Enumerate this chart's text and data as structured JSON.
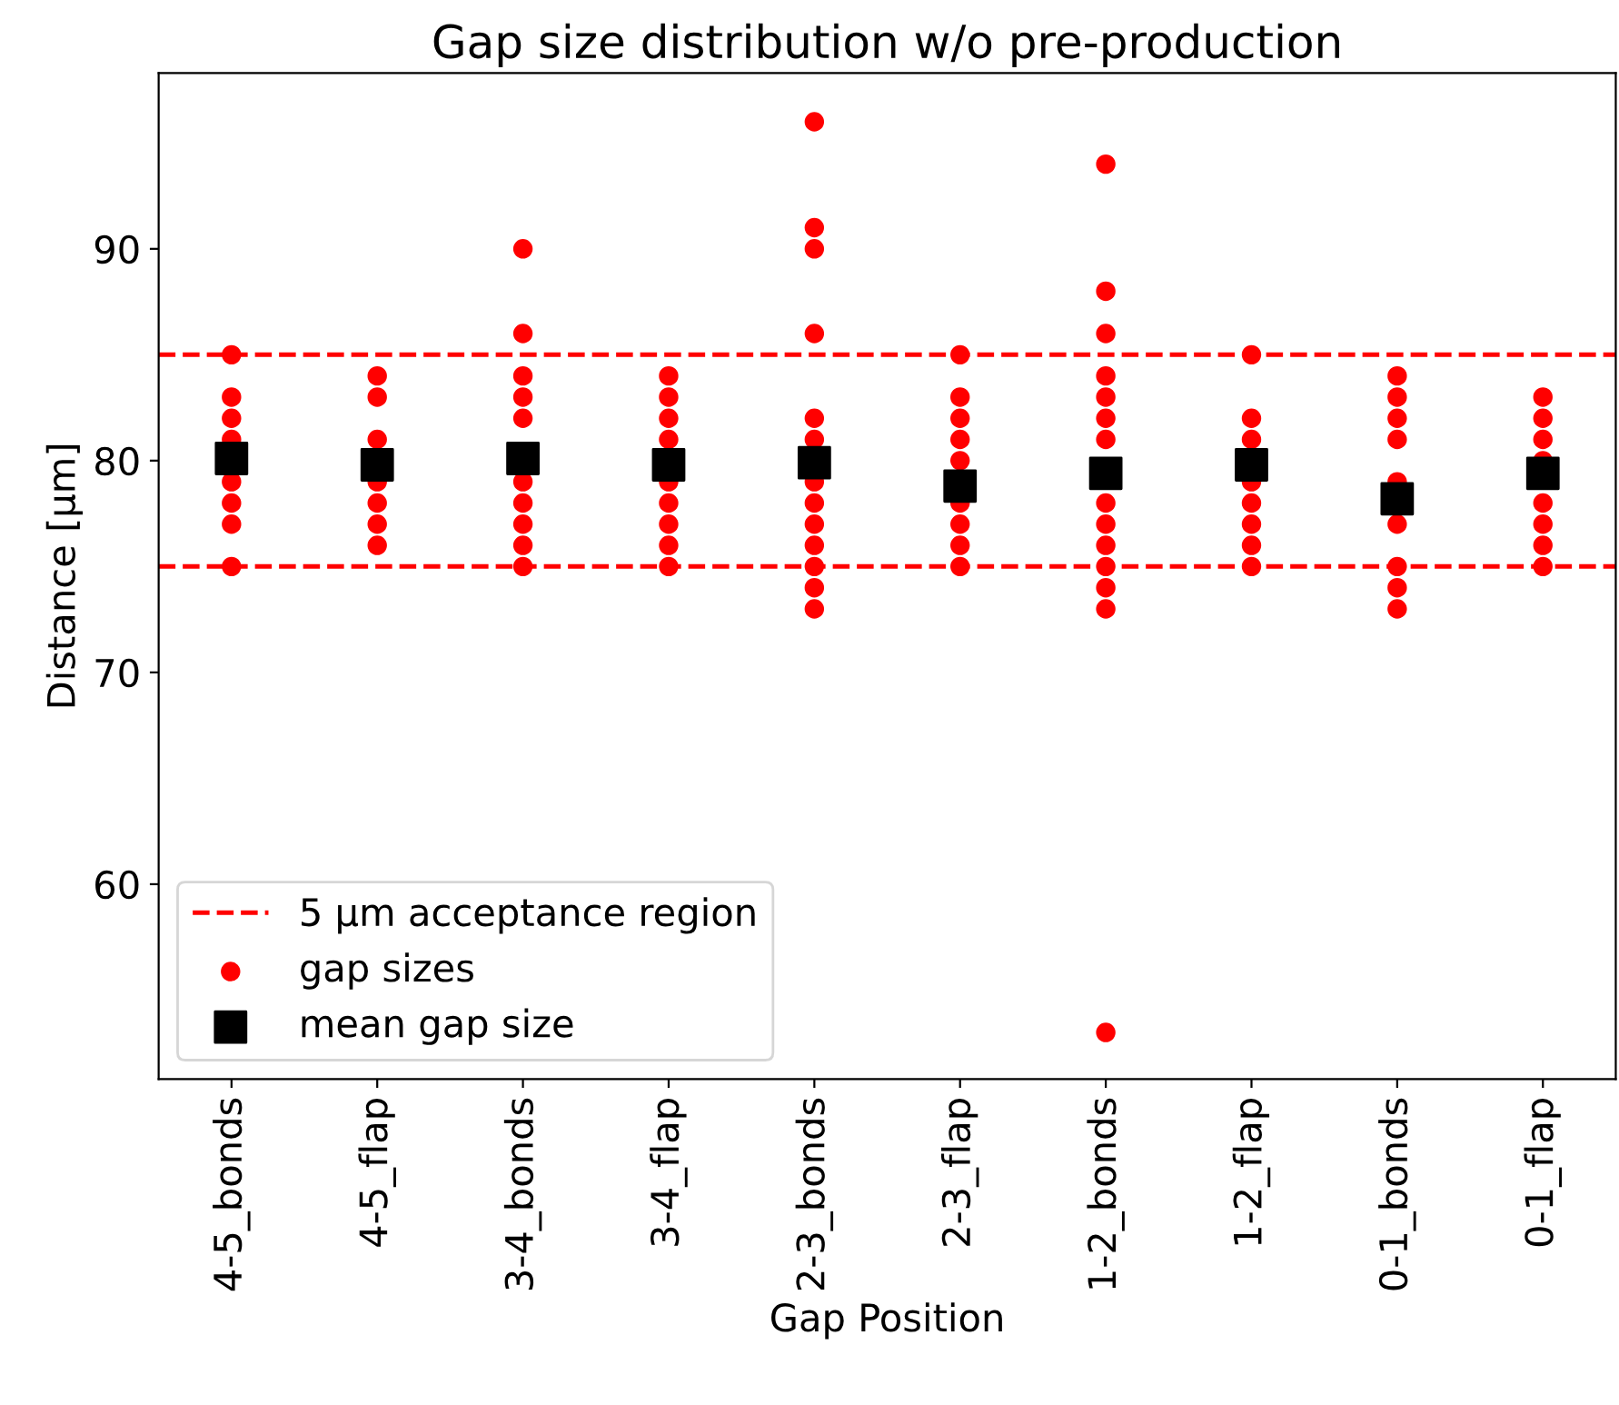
{
  "chart_data": {
    "type": "scatter",
    "title": "Gap size distribution w/o pre-production",
    "xlabel": "Gap Position",
    "ylabel": "Distance [µm]",
    "categories": [
      "4-5_bonds",
      "4-5_flap",
      "3-4_bonds",
      "3-4_flap",
      "2-3_bonds",
      "2-3_flap",
      "1-2_bonds",
      "1-2_flap",
      "0-1_bonds",
      "0-1_flap"
    ],
    "series": [
      {
        "name": "gap sizes",
        "marker": "circle",
        "color": "#ff0000",
        "x": [
          "4-5_bonds",
          "4-5_bonds",
          "4-5_bonds",
          "4-5_bonds",
          "4-5_bonds",
          "4-5_bonds",
          "4-5_bonds",
          "4-5_bonds",
          "4-5_flap",
          "4-5_flap",
          "4-5_flap",
          "4-5_flap",
          "4-5_flap",
          "4-5_flap",
          "4-5_flap",
          "3-4_bonds",
          "3-4_bonds",
          "3-4_bonds",
          "3-4_bonds",
          "3-4_bonds",
          "3-4_bonds",
          "3-4_bonds",
          "3-4_bonds",
          "3-4_bonds",
          "3-4_bonds",
          "3-4_flap",
          "3-4_flap",
          "3-4_flap",
          "3-4_flap",
          "3-4_flap",
          "3-4_flap",
          "3-4_flap",
          "3-4_flap",
          "3-4_flap",
          "2-3_bonds",
          "2-3_bonds",
          "2-3_bonds",
          "2-3_bonds",
          "2-3_bonds",
          "2-3_bonds",
          "2-3_bonds",
          "2-3_bonds",
          "2-3_bonds",
          "2-3_bonds",
          "2-3_bonds",
          "2-3_bonds",
          "2-3_bonds",
          "2-3_flap",
          "2-3_flap",
          "2-3_flap",
          "2-3_flap",
          "2-3_flap",
          "2-3_flap",
          "2-3_flap",
          "2-3_flap",
          "2-3_flap",
          "1-2_bonds",
          "1-2_bonds",
          "1-2_bonds",
          "1-2_bonds",
          "1-2_bonds",
          "1-2_bonds",
          "1-2_bonds",
          "1-2_bonds",
          "1-2_bonds",
          "1-2_bonds",
          "1-2_bonds",
          "1-2_bonds",
          "1-2_bonds",
          "1-2_bonds",
          "1-2_flap",
          "1-2_flap",
          "1-2_flap",
          "1-2_flap",
          "1-2_flap",
          "1-2_flap",
          "1-2_flap",
          "1-2_flap",
          "0-1_bonds",
          "0-1_bonds",
          "0-1_bonds",
          "0-1_bonds",
          "0-1_bonds",
          "0-1_bonds",
          "0-1_bonds",
          "0-1_bonds",
          "0-1_bonds",
          "0-1_flap",
          "0-1_flap",
          "0-1_flap",
          "0-1_flap",
          "0-1_flap",
          "0-1_flap",
          "0-1_flap",
          "0-1_flap"
        ],
        "values": [
          85,
          83,
          82,
          81,
          79,
          78,
          77,
          75,
          84,
          83,
          81,
          79,
          78,
          77,
          76,
          90,
          86,
          84,
          83,
          82,
          79,
          78,
          77,
          76,
          75,
          84,
          83,
          82,
          81,
          79,
          78,
          77,
          76,
          75,
          96,
          91,
          90,
          86,
          82,
          81,
          79,
          78,
          77,
          76,
          75,
          74,
          73,
          85,
          83,
          82,
          81,
          80,
          78,
          77,
          76,
          75,
          94,
          88,
          86,
          84,
          83,
          82,
          81,
          78,
          77,
          76,
          75,
          74,
          73,
          53,
          85,
          82,
          81,
          79,
          78,
          77,
          76,
          75,
          84,
          83,
          82,
          81,
          79,
          77,
          75,
          74,
          73,
          83,
          82,
          81,
          80,
          78,
          77,
          76,
          75
        ]
      },
      {
        "name": "mean gap size",
        "marker": "square",
        "color": "#000000",
        "values": [
          80.1,
          79.8,
          80.1,
          79.8,
          79.9,
          78.8,
          79.4,
          79.8,
          78.2,
          79.4
        ]
      }
    ],
    "ref_lines": [
      {
        "axis": "y",
        "value": 85,
        "label": "5 µm acceptance region",
        "color": "#ff0000",
        "line_style": "dashed"
      },
      {
        "axis": "y",
        "value": 75,
        "color": "#ff0000",
        "line_style": "dashed"
      }
    ],
    "ylim": [
      50.8,
      98.3
    ],
    "yticks": [
      60,
      70,
      80,
      90
    ],
    "grid": false,
    "legend": "bottom left"
  }
}
